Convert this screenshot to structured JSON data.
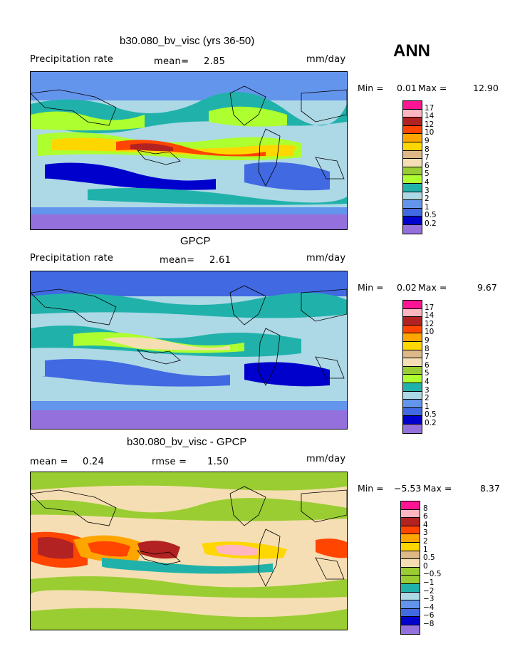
{
  "season": "ANN",
  "panels": [
    {
      "title": "b30.080_bv_visc (yrs 36-50)",
      "left_label": "Precipitation rate",
      "mean_label": "mean=",
      "mean_value": "2.85",
      "units": "mm/day",
      "min_label": "Min =",
      "min_value": "0.01",
      "max_label": "Max =",
      "max_value": "12.90",
      "levels": [
        "17",
        "14",
        "12",
        "10",
        "9",
        "8",
        "7",
        "6",
        "5",
        "4",
        "3",
        "2",
        "1",
        "0.5",
        "0.2"
      ],
      "colors": [
        "#ff1493",
        "#ffb6c1",
        "#b22222",
        "#ff4500",
        "#ffa500",
        "#ffd700",
        "#deb887",
        "#f5deb3",
        "#9acd32",
        "#adff2f",
        "#20b2aa",
        "#add8e6",
        "#6495ed",
        "#4169e1",
        "#0000cd",
        "#9370db"
      ]
    },
    {
      "title": "GPCP",
      "left_label": "Precipitation rate",
      "mean_label": "mean=",
      "mean_value": "2.61",
      "units": "mm/day",
      "min_label": "Min =",
      "min_value": "0.02",
      "max_label": "Max =",
      "max_value": "9.67",
      "levels": [
        "17",
        "14",
        "12",
        "10",
        "9",
        "8",
        "7",
        "6",
        "5",
        "4",
        "3",
        "2",
        "1",
        "0.5",
        "0.2"
      ],
      "colors": [
        "#ff1493",
        "#ffb6c1",
        "#b22222",
        "#ff4500",
        "#ffa500",
        "#ffd700",
        "#deb887",
        "#f5deb3",
        "#9acd32",
        "#adff2f",
        "#20b2aa",
        "#add8e6",
        "#6495ed",
        "#4169e1",
        "#0000cd",
        "#9370db"
      ]
    },
    {
      "title": "b30.080_bv_visc - GPCP",
      "mean_label": "mean =",
      "mean_value": "0.24",
      "rmse_label": "rmse =",
      "rmse_value": "1.50",
      "units": "mm/day",
      "min_label": "Min =",
      "min_value": "−5.53",
      "max_label": "Max =",
      "max_value": "8.37",
      "levels": [
        "8",
        "6",
        "4",
        "3",
        "2",
        "1",
        "0.5",
        "0",
        "−0.5",
        "−1",
        "−2",
        "−3",
        "−4",
        "−6",
        "−8"
      ],
      "colors": [
        "#ff1493",
        "#ffb6c1",
        "#b22222",
        "#ff4500",
        "#ffa500",
        "#ffd700",
        "#deb887",
        "#f5deb3",
        "#9acd32",
        "#9acd32",
        "#20b2aa",
        "#add8e6",
        "#6495ed",
        "#4169e1",
        "#0000cd",
        "#9370db"
      ]
    }
  ]
}
